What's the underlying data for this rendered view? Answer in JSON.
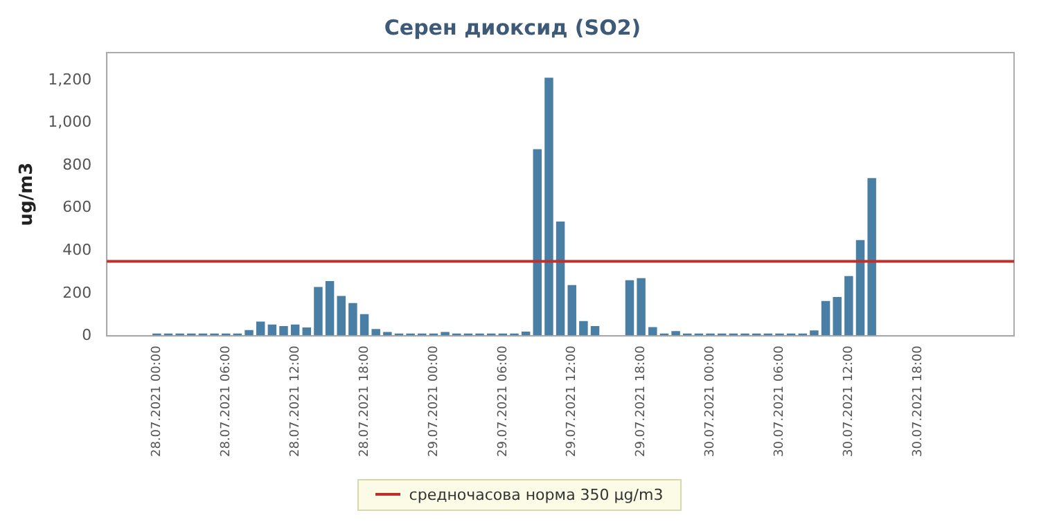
{
  "chart_data": {
    "type": "bar",
    "title": "Серен диоксид (SO2)",
    "ylabel": "ug/m3",
    "color": "#4a7fa5",
    "x": [
      "2021-07-28T00:00",
      "2021-07-28T01:00",
      "2021-07-28T02:00",
      "2021-07-28T03:00",
      "2021-07-28T04:00",
      "2021-07-28T05:00",
      "2021-07-28T06:00",
      "2021-07-28T07:00",
      "2021-07-28T08:00",
      "2021-07-28T09:00",
      "2021-07-28T10:00",
      "2021-07-28T11:00",
      "2021-07-28T12:00",
      "2021-07-28T13:00",
      "2021-07-28T14:00",
      "2021-07-28T15:00",
      "2021-07-28T16:00",
      "2021-07-28T17:00",
      "2021-07-28T18:00",
      "2021-07-28T19:00",
      "2021-07-28T20:00",
      "2021-07-28T21:00",
      "2021-07-28T22:00",
      "2021-07-28T23:00",
      "2021-07-29T00:00",
      "2021-07-29T01:00",
      "2021-07-29T02:00",
      "2021-07-29T03:00",
      "2021-07-29T04:00",
      "2021-07-29T05:00",
      "2021-07-29T06:00",
      "2021-07-29T07:00",
      "2021-07-29T08:00",
      "2021-07-29T09:00",
      "2021-07-29T10:00",
      "2021-07-29T11:00",
      "2021-07-29T12:00",
      "2021-07-29T13:00",
      "2021-07-29T14:00",
      "2021-07-29T15:00",
      "2021-07-29T16:00",
      "2021-07-29T17:00",
      "2021-07-29T18:00",
      "2021-07-29T19:00",
      "2021-07-29T20:00",
      "2021-07-29T21:00",
      "2021-07-29T22:00",
      "2021-07-29T23:00",
      "2021-07-30T00:00",
      "2021-07-30T01:00",
      "2021-07-30T02:00",
      "2021-07-30T03:00",
      "2021-07-30T04:00",
      "2021-07-30T05:00",
      "2021-07-30T06:00",
      "2021-07-30T07:00",
      "2021-07-30T08:00",
      "2021-07-30T09:00",
      "2021-07-30T10:00",
      "2021-07-30T11:00",
      "2021-07-30T12:00",
      "2021-07-30T13:00",
      "2021-07-30T14:00"
    ],
    "values": [
      12,
      12,
      12,
      12,
      12,
      12,
      12,
      12,
      28,
      68,
      54,
      47,
      54,
      40,
      230,
      258,
      188,
      155,
      103,
      33,
      19,
      12,
      12,
      12,
      12,
      19,
      12,
      12,
      12,
      12,
      12,
      12,
      21,
      877,
      1212,
      537,
      239,
      70,
      47,
      null,
      null,
      262,
      272,
      42,
      12,
      23,
      12,
      12,
      12,
      12,
      12,
      12,
      12,
      12,
      12,
      12,
      12,
      26,
      164,
      183,
      281,
      450,
      741
    ],
    "xlim": [
      "2021-07-27T19:40",
      "2021-07-31T02:20"
    ],
    "xticks": [
      {
        "value": "2021-07-28T00:00",
        "label": "28.07.2021 00:00"
      },
      {
        "value": "2021-07-28T06:00",
        "label": "28.07.2021 06:00"
      },
      {
        "value": "2021-07-28T12:00",
        "label": "28.07.2021 12:00"
      },
      {
        "value": "2021-07-28T18:00",
        "label": "28.07.2021 18:00"
      },
      {
        "value": "2021-07-29T00:00",
        "label": "29.07.2021 00:00"
      },
      {
        "value": "2021-07-29T06:00",
        "label": "29.07.2021 06:00"
      },
      {
        "value": "2021-07-29T12:00",
        "label": "29.07.2021 12:00"
      },
      {
        "value": "2021-07-29T18:00",
        "label": "29.07.2021 18:00"
      },
      {
        "value": "2021-07-30T00:00",
        "label": "30.07.2021 00:00"
      },
      {
        "value": "2021-07-30T06:00",
        "label": "30.07.2021 06:00"
      },
      {
        "value": "2021-07-30T12:00",
        "label": "30.07.2021 12:00"
      },
      {
        "value": "2021-07-30T18:00",
        "label": "30.07.2021 18:00"
      }
    ],
    "ylim": [
      0,
      1330
    ],
    "yticks": [
      0,
      200,
      400,
      600,
      800,
      {
        "value": 1000,
        "label": "1,000"
      },
      {
        "value": 1200,
        "label": "1,200"
      }
    ],
    "ref_lines": [
      {
        "axis": "y",
        "value": 350,
        "label": "средночасова норма 350 μg/m3",
        "color": "#c0302b"
      }
    ],
    "grid": false,
    "legend": "bottom"
  }
}
